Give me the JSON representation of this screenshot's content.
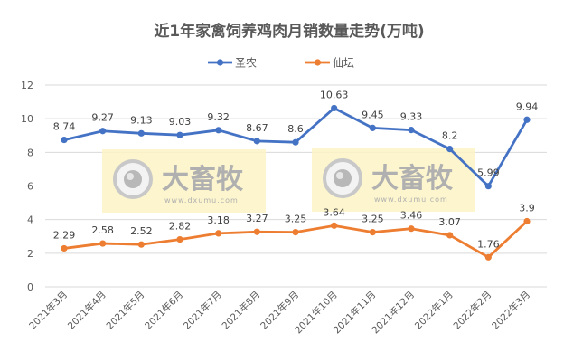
{
  "chart_data": {
    "type": "line",
    "title": "近1年家禽饲养鸡肉月销数量走势(万吨)",
    "xlabel": "",
    "ylabel": "",
    "ylim": [
      0,
      12
    ],
    "yticks": [
      0,
      2,
      4,
      6,
      8,
      10,
      12
    ],
    "grid": true,
    "legend_position": "top",
    "categories": [
      "2021年3月",
      "2021年4月",
      "2021年5月",
      "2021年6月",
      "2021年7月",
      "2021年8月",
      "2021年9月",
      "2021年10月",
      "2021年11月",
      "2021年12月",
      "2022年1月",
      "2022年2月",
      "2022年3月"
    ],
    "series": [
      {
        "name": "圣农",
        "color": "#4472C4",
        "values": [
          8.74,
          9.27,
          9.13,
          9.03,
          9.32,
          8.67,
          8.6,
          10.63,
          9.45,
          9.33,
          8.2,
          5.99,
          9.94
        ]
      },
      {
        "name": "仙坛",
        "color": "#ED7D31",
        "values": [
          2.29,
          2.58,
          2.52,
          2.82,
          3.18,
          3.27,
          3.25,
          3.64,
          3.25,
          3.46,
          3.07,
          1.76,
          3.9
        ]
      }
    ]
  },
  "watermark": {
    "text": "大畜牧",
    "url": "www.dxumu.com"
  }
}
